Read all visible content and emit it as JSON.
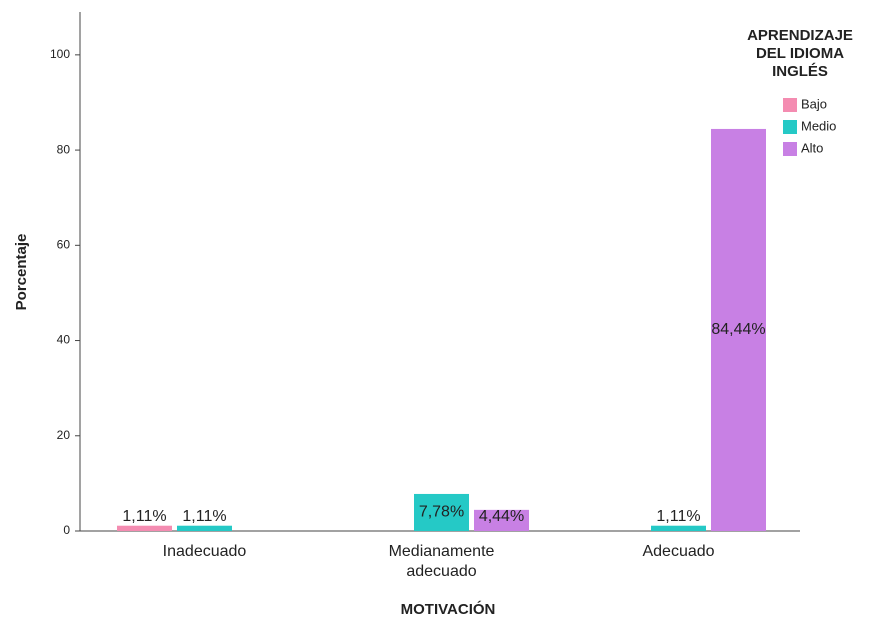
{
  "chart_data": {
    "type": "bar",
    "x_label": "MOTIVACIÓN",
    "y_label": "Porcentaje",
    "legend_title": [
      "APRENDIZAJE",
      "DEL IDIOMA",
      "INGLÉS"
    ],
    "legend_position": "upper right",
    "categories": [
      "Inadecuado",
      "Medianamente adecuado",
      "Adecuado"
    ],
    "series": [
      {
        "name": "Bajo",
        "color": "#f48cb1",
        "values": [
          1.11,
          null,
          null
        ],
        "value_labels": [
          "1,11%",
          null,
          null
        ]
      },
      {
        "name": "Medio",
        "color": "#25c9c6",
        "values": [
          1.11,
          7.78,
          1.11
        ],
        "value_labels": [
          "1,11%",
          "7,78%",
          "1,11%"
        ]
      },
      {
        "name": "Alto",
        "color": "#c880e4",
        "values": [
          null,
          4.44,
          84.44
        ],
        "value_labels": [
          null,
          "4,44%",
          "84,44%"
        ]
      }
    ],
    "ylim": [
      0,
      109
    ],
    "yticks": [
      0,
      20,
      40,
      60,
      80,
      100
    ]
  }
}
